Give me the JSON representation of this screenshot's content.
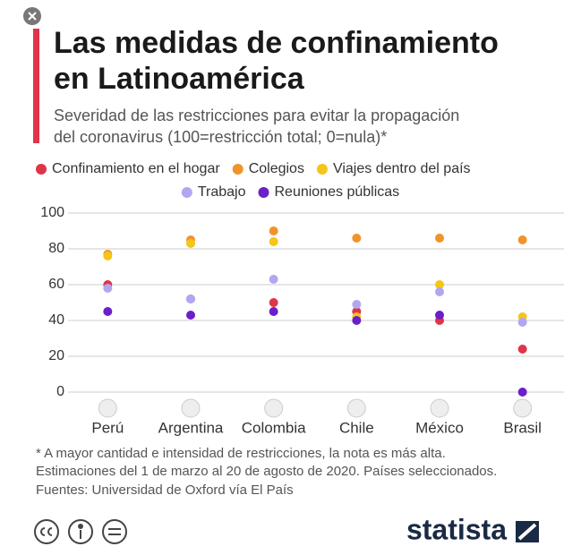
{
  "chart_data": {
    "type": "dot",
    "title_lines": [
      "Las medidas de confinamiento",
      "en Latinoamérica"
    ],
    "subtitle_lines": [
      "Severidad de las restricciones para evitar la propagación",
      "del coronavirus (100=restricción total; 0=nula)*"
    ],
    "categories": [
      "Perú",
      "Argentina",
      "Colombia",
      "Chile",
      "México",
      "Brasil"
    ],
    "series": [
      {
        "name": "Confinamiento en el hogar",
        "color": "#e0344a",
        "values": [
          60,
          52,
          50,
          45,
          40,
          24
        ]
      },
      {
        "name": "Colegios",
        "color": "#f0932b",
        "values": [
          77,
          85,
          90,
          86,
          86,
          85
        ]
      },
      {
        "name": "Viajes dentro del país",
        "color": "#f5c518",
        "values": [
          76,
          83,
          84,
          42,
          60,
          42
        ]
      },
      {
        "name": "Trabajo",
        "color": "#b1a7f0",
        "values": [
          58,
          52,
          63,
          49,
          56,
          39
        ]
      },
      {
        "name": "Reuniones públicas",
        "color": "#6a1fc9",
        "values": [
          45,
          43,
          45,
          40,
          43,
          0
        ]
      }
    ],
    "ylim": [
      0,
      100
    ],
    "yticks": [
      0,
      20,
      40,
      60,
      80,
      100
    ],
    "grid": true,
    "notes": [
      "* A mayor cantidad e intensidad de restricciones, la nota es más alta.",
      "Estimaciones del 1 de marzo al 20 de agosto de 2020. Países seleccionados.",
      "Fuentes: Universidad de Oxford vía El País"
    ],
    "brand": "statista"
  }
}
